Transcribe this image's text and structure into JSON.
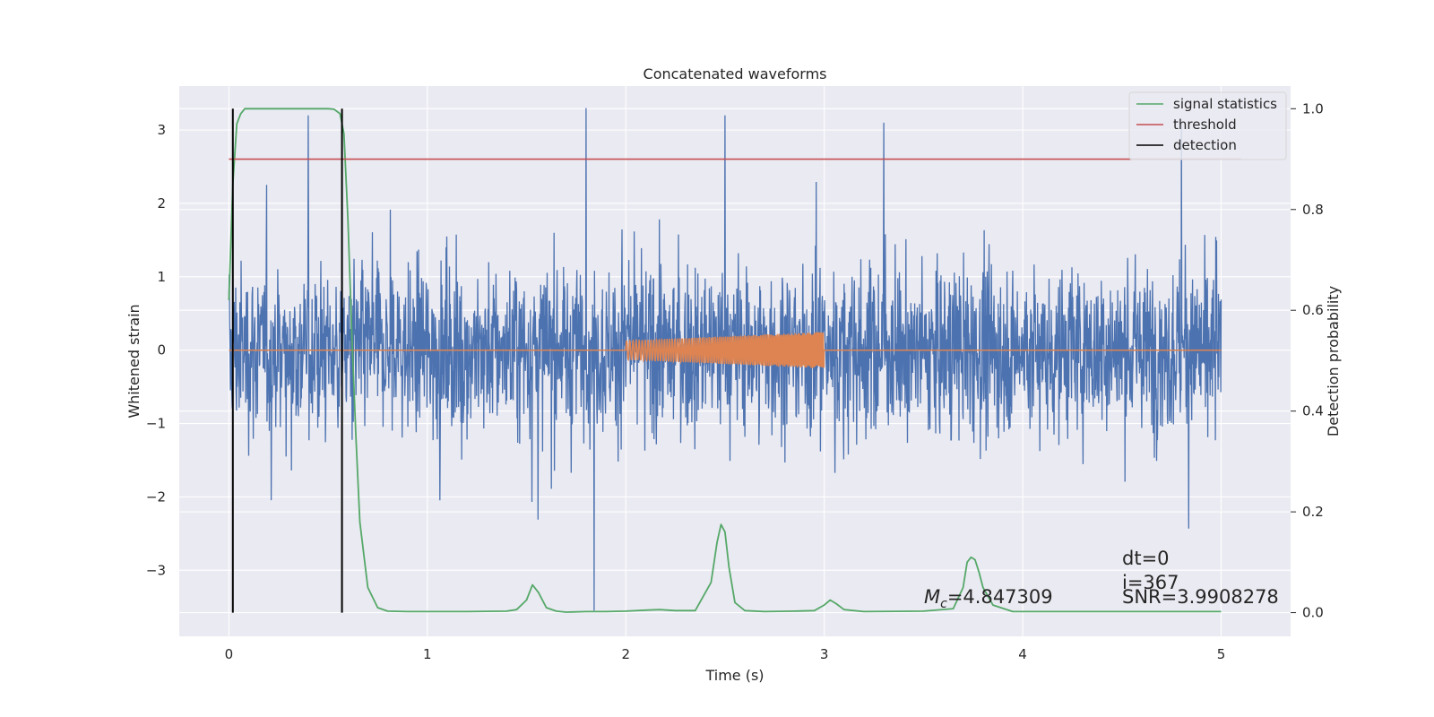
{
  "chart_data": {
    "type": "line",
    "title": "Concatenated waveforms",
    "xlabel": "Time (s)",
    "ylabel": "Whitened strain",
    "y2label": "Detection probability",
    "xlim": [
      -0.25,
      5.35
    ],
    "ylim": [
      -3.9,
      3.6
    ],
    "y2lim": [
      -0.047,
      1.045
    ],
    "xticks": [
      0,
      1,
      2,
      3,
      4,
      5
    ],
    "yticks": [
      -3,
      -2,
      -1,
      0,
      1,
      2,
      3
    ],
    "y2ticks": [
      0.0,
      0.2,
      0.4,
      0.6,
      0.8,
      1.0
    ],
    "grid": true,
    "legend": {
      "placement": "top-right",
      "entries": [
        {
          "label": "signal statistics",
          "color": "#55a868"
        },
        {
          "label": "threshold",
          "color": "#c44e52"
        },
        {
          "label": "detection",
          "color": "#000000"
        }
      ]
    },
    "series": [
      {
        "name": "",
        "kind": "noise",
        "color": "#4c72b0",
        "axis": "left",
        "x_range": [
          0,
          5
        ],
        "amplitude_typical": 1.6,
        "peaks": [
          {
            "x": 0.4,
            "y": 3.2
          },
          {
            "x": 1.8,
            "y": 3.3
          },
          {
            "x": 2.5,
            "y": 3.2
          },
          {
            "x": 3.3,
            "y": 3.1
          },
          {
            "x": 4.8,
            "y": 3.1
          },
          {
            "x": 1.84,
            "y": -3.55
          }
        ]
      },
      {
        "name": "",
        "kind": "chirp",
        "color": "#dd8452",
        "axis": "left",
        "x_range": [
          0,
          5
        ],
        "chirp_range": [
          2.0,
          3.0
        ],
        "amplitude_start": 0.13,
        "amplitude_end": 0.25
      },
      {
        "name": "signal statistics",
        "color": "#55a868",
        "axis": "right",
        "x": [
          0,
          0.02,
          0.04,
          0.06,
          0.08,
          0.1,
          0.15,
          0.2,
          0.3,
          0.4,
          0.5,
          0.53,
          0.56,
          0.58,
          0.6,
          0.62,
          0.64,
          0.66,
          0.7,
          0.75,
          0.8,
          0.9,
          1.0,
          1.2,
          1.4,
          1.45,
          1.5,
          1.53,
          1.56,
          1.6,
          1.65,
          1.7,
          1.8,
          1.9,
          2.0,
          2.1,
          2.17,
          2.25,
          2.35,
          2.43,
          2.46,
          2.48,
          2.5,
          2.52,
          2.55,
          2.6,
          2.7,
          2.85,
          2.95,
          3.0,
          3.03,
          3.06,
          3.1,
          3.2,
          3.5,
          3.65,
          3.7,
          3.72,
          3.74,
          3.76,
          3.78,
          3.8,
          3.85,
          3.95,
          4.2,
          4.5,
          4.8,
          5.0
        ],
        "y": [
          0.62,
          0.85,
          0.97,
          0.99,
          1.0,
          1.0,
          1.0,
          1.0,
          1.0,
          1.0,
          1.0,
          0.999,
          0.99,
          0.95,
          0.78,
          0.55,
          0.35,
          0.18,
          0.05,
          0.01,
          0.003,
          0.002,
          0.002,
          0.002,
          0.003,
          0.006,
          0.025,
          0.055,
          0.04,
          0.01,
          0.003,
          0.001,
          0.002,
          0.002,
          0.003,
          0.005,
          0.006,
          0.004,
          0.004,
          0.06,
          0.14,
          0.175,
          0.16,
          0.09,
          0.02,
          0.004,
          0.002,
          0.003,
          0.004,
          0.015,
          0.025,
          0.018,
          0.006,
          0.002,
          0.003,
          0.008,
          0.05,
          0.1,
          0.11,
          0.105,
          0.08,
          0.05,
          0.015,
          0.002,
          0.002,
          0.002,
          0.002,
          0.002
        ]
      },
      {
        "name": "threshold",
        "color": "#c44e52",
        "axis": "right",
        "x": [
          0,
          5.1
        ],
        "y": [
          0.9,
          0.9
        ]
      },
      {
        "name": "detection",
        "color": "#000000",
        "axis": "right",
        "x_positions": [
          0.02,
          0.57
        ],
        "y": [
          0.0,
          1.0
        ]
      }
    ],
    "annotations": [
      {
        "text": "Mc=4.847309",
        "math": "M_c",
        "value": "=4.847309",
        "x": 3.5,
        "y": -3.35
      },
      {
        "text": "dt=0",
        "x": 4.5,
        "y": -2.95
      },
      {
        "text": "i=367",
        "x": 4.5,
        "y": -3.25
      },
      {
        "text": "SNR=3.9908278",
        "x": 4.5,
        "y": -3.45
      }
    ]
  }
}
